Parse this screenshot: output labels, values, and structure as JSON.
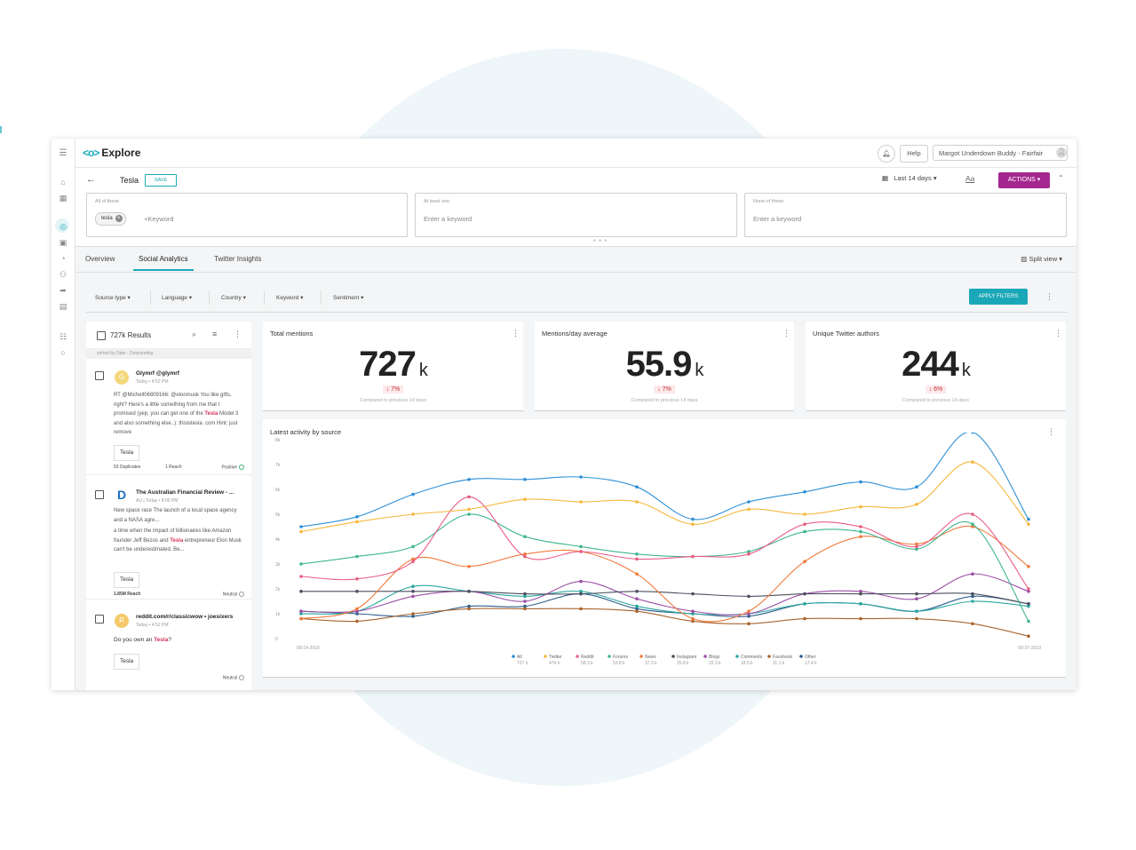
{
  "app": {
    "title": "Explore",
    "logo_mark": "<o>"
  },
  "header": {
    "help": "Help",
    "account": "Margot Underdown Buddy - Fairfair"
  },
  "query": {
    "name": "Tesla",
    "save": "SAVE",
    "date_range": "Last 14 days",
    "font_btn": "Aa",
    "actions": "ACTIONS",
    "boxes": [
      {
        "label": "All of these",
        "chip": "tesla",
        "add": "+Keyword"
      },
      {
        "label": "At least one",
        "placeholder": "Enter a keyword"
      },
      {
        "label": "None of these",
        "placeholder": "Enter a keyword"
      }
    ]
  },
  "tabs": [
    "Overview",
    "Social Analytics",
    "Twitter Insights"
  ],
  "split_view": "Split view",
  "filters": [
    "Source type",
    "Language",
    "Country",
    "Keyword",
    "Sentiment"
  ],
  "apply": "APPLY FILTERS",
  "results": {
    "count": "727k Results",
    "sorted": "sorted by Date - Descending",
    "posts": [
      {
        "avatar": "G",
        "name": "Glymrf @glymrf",
        "meta": "Today • 4:52 PM",
        "text1": "RT @Michell06809166: @elonmusk You like gifts, right? Here's a little something from me that I promised (yep, you can get one of the ",
        "hl": "Tesla",
        "text2": " Model 3 and also something else..): thisistesla. com Hint: just remove",
        "tag": "Tesla",
        "dups": "53 Duplicates",
        "reach": "1 Reach",
        "sentiment": "Positive"
      },
      {
        "avatar": "D",
        "name": "The Australian Financial Review - ...",
        "meta": "AU | Today • 8:00 PM",
        "text0": "New space race The launch of a local space agency and a NASA agre...",
        "text1": "a time when the impact of billionaires like Amazon founder Jeff Bezos and ",
        "hl": "Tesla",
        "text2": " entrepreneur Elon Musk can't be underestimated. Be...",
        "tag": "Tesla",
        "reach": "1.85M Reach",
        "sentiment": "Neutral"
      },
      {
        "avatar": "R",
        "name": "reddit.com/r/classicwow • joesixers",
        "meta": "Today • 4:52 PM",
        "text1": "Do you own an ",
        "hl": "Tesla",
        "text2": "?",
        "tag": "Tesla",
        "sentiment": "Neutral"
      }
    ]
  },
  "cards": [
    {
      "title": "Total mentions",
      "value": "727",
      "unit": "k",
      "delta": "↓ 7%",
      "compare": "Compared to previous 14 days"
    },
    {
      "title": "Mentions/day average",
      "value": "55.9",
      "unit": "k",
      "delta": "↓ 7%",
      "compare": "Compared to previous 14 days"
    },
    {
      "title": "Unique Twitter authors",
      "value": "244",
      "unit": "k",
      "delta": "↓ 6%",
      "compare": "Compared to previous 14 days"
    }
  ],
  "chart_data": {
    "type": "line",
    "title": "Latest activity by source",
    "x_start_label": "09-14-2019",
    "x_end_label": "09-27-2019",
    "y_ticks": [
      "0",
      "1k",
      "2k",
      "3k",
      "4k",
      "5k",
      "6k",
      "7k",
      "8k"
    ],
    "ylim": [
      0,
      8000
    ],
    "x": [
      0,
      1,
      2,
      3,
      4,
      5,
      6,
      7,
      8,
      9,
      10,
      11,
      12,
      13
    ],
    "series": [
      {
        "name": "All",
        "total": "727 k",
        "color": "#2e8fd6",
        "values": [
          4500,
          4900,
          5800,
          6400,
          6400,
          6500,
          6100,
          4800,
          5500,
          5900,
          6300,
          6100,
          8300,
          4800
        ]
      },
      {
        "name": "Twitter",
        "total": "474 k",
        "color": "#f6b73c",
        "values": [
          4300,
          4700,
          5000,
          5200,
          5600,
          5500,
          5500,
          4600,
          5200,
          5000,
          5300,
          5400,
          7100,
          4600
        ]
      },
      {
        "name": "Reddit",
        "total": "58.3 k",
        "color": "#e85d83",
        "values": [
          2500,
          2400,
          3100,
          5700,
          3300,
          3500,
          3200,
          3300,
          3400,
          4600,
          4500,
          3700,
          5000,
          2000
        ]
      },
      {
        "name": "Forums",
        "total": "53.8 k",
        "color": "#3fb68e",
        "values": [
          3000,
          3300,
          3700,
          5000,
          4100,
          3700,
          3400,
          3300,
          3500,
          4300,
          4300,
          3600,
          4600,
          700
        ]
      },
      {
        "name": "News",
        "total": "37.3 k",
        "color": "#f07a3c",
        "values": [
          800,
          1200,
          3200,
          2900,
          3400,
          3500,
          2600,
          800,
          1100,
          3100,
          4100,
          3800,
          4500,
          2900
        ]
      },
      {
        "name": "Instagram",
        "total": "25.8 k",
        "color": "#4a4f5e",
        "values": [
          1900,
          1900,
          1900,
          1900,
          1800,
          1800,
          1900,
          1800,
          1700,
          1800,
          1800,
          1800,
          1800,
          1400
        ]
      },
      {
        "name": "Blogs",
        "total": "22.3 k",
        "color": "#9b4fa5",
        "values": [
          1100,
          1100,
          1700,
          1900,
          1500,
          2300,
          1600,
          1100,
          1000,
          1800,
          1900,
          1600,
          2600,
          1900
        ]
      },
      {
        "name": "Comments",
        "total": "18.5 k",
        "color": "#2aa7a0",
        "values": [
          1000,
          1100,
          2100,
          1900,
          1700,
          1900,
          1300,
          1000,
          1000,
          1400,
          1400,
          1100,
          1500,
          1300
        ]
      },
      {
        "name": "Facebook",
        "total": "11.1 k",
        "color": "#a7642f",
        "values": [
          800,
          700,
          1000,
          1200,
          1200,
          1200,
          1100,
          700,
          600,
          800,
          800,
          800,
          600,
          100
        ]
      },
      {
        "name": "Other",
        "total": "17.4 k",
        "color": "#2f5e8c",
        "values": [
          1100,
          1000,
          900,
          1300,
          1300,
          1800,
          1200,
          1000,
          900,
          1400,
          1400,
          1100,
          1700,
          1400
        ]
      }
    ]
  }
}
